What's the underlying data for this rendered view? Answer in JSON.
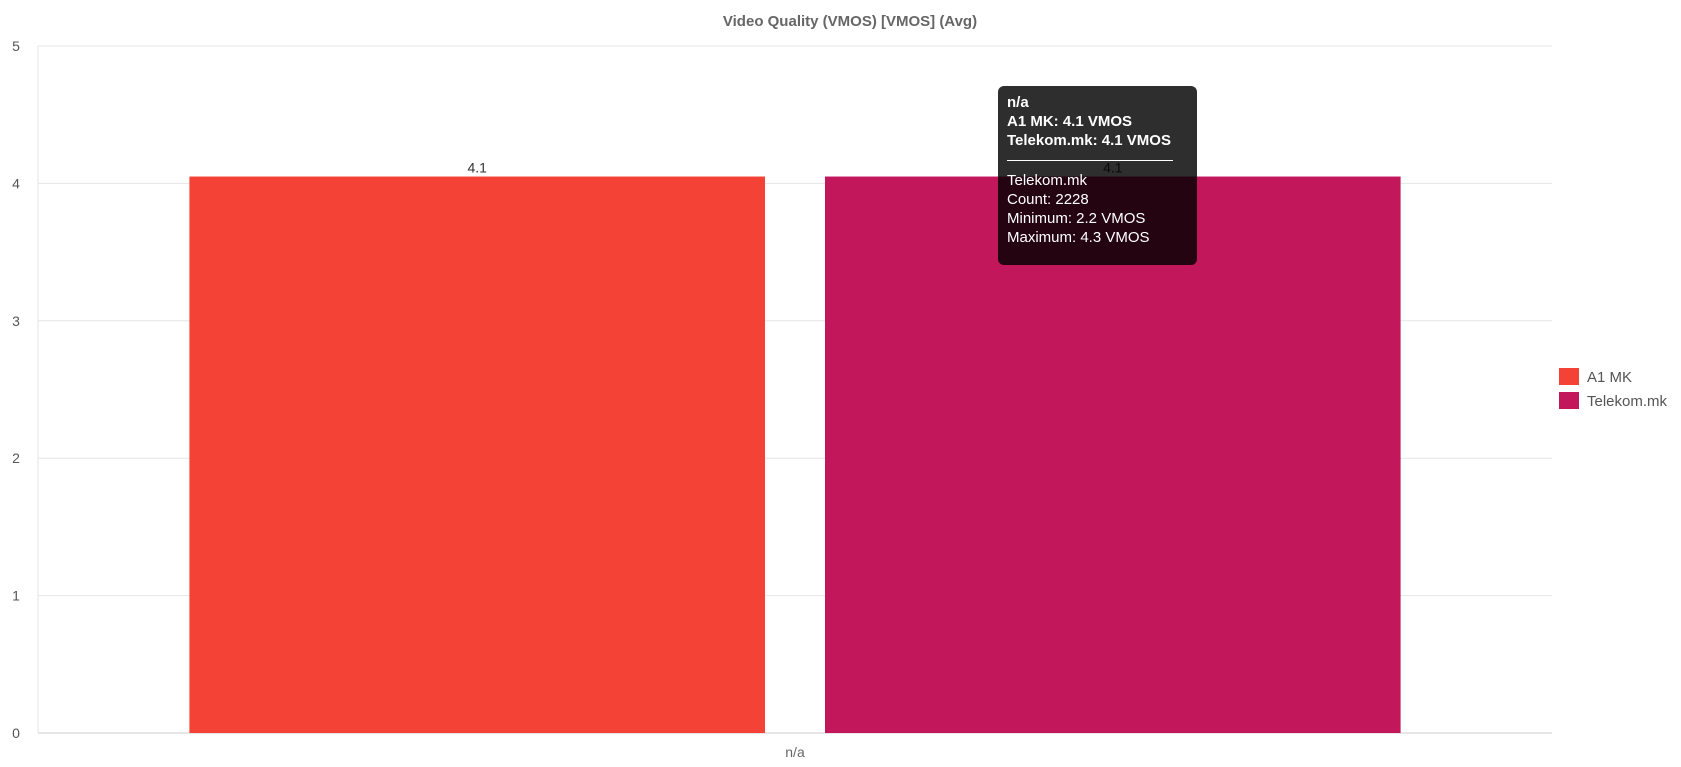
{
  "chart_data": {
    "type": "bar",
    "title": "Video Quality (VMOS) [VMOS] (Avg)",
    "categories": [
      "n/a"
    ],
    "series": [
      {
        "name": "A1 MK",
        "values": [
          4.05
        ],
        "data_label": "4.1",
        "color": "#f44336"
      },
      {
        "name": "Telekom.mk",
        "values": [
          4.05
        ],
        "data_label": "4.1",
        "color": "#c2185b"
      }
    ],
    "ylim": [
      0,
      5
    ],
    "yticks": [
      0,
      1,
      2,
      3,
      4,
      5
    ],
    "ytick_labels": [
      "0",
      "1",
      "2",
      "3",
      "4",
      "5"
    ],
    "xlabel": "",
    "ylabel": "",
    "grid": true,
    "legend_position": "right",
    "gridline_color": "#e6e6e6",
    "axis_color": "#cccccc",
    "title_color": "#666666",
    "tick_color": "#555555"
  },
  "tooltip": {
    "category": "n/a",
    "lines": [
      "A1 MK: 4.1 VMOS",
      "Telekom.mk: 4.1 VMOS"
    ],
    "details": [
      "Telekom.mk",
      "Count: 2228",
      "Minimum: 2.2 VMOS",
      "Maximum: 4.3 VMOS"
    ]
  }
}
